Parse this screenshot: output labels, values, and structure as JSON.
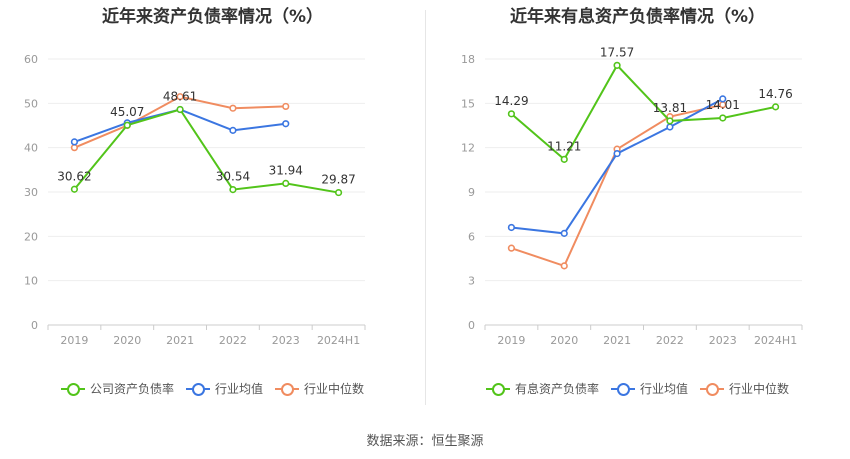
{
  "chart_data": [
    {
      "type": "line",
      "title": "近年来资产负债率情况（%）",
      "categories": [
        "2019",
        "2020",
        "2021",
        "2022",
        "2023",
        "2024H1"
      ],
      "ylim": [
        0,
        60
      ],
      "yticks": [
        0,
        10,
        20,
        30,
        40,
        50,
        60
      ],
      "series": [
        {
          "name": "公司资产负债率",
          "color": "#52c41a",
          "values": [
            30.62,
            45.07,
            48.61,
            30.54,
            31.94,
            29.87
          ],
          "labels": [
            "30.62",
            "45.07",
            "48.61",
            "30.54",
            "31.94",
            "29.87"
          ]
        },
        {
          "name": "行业均值",
          "color": "#3b76e1",
          "values": [
            41.3,
            45.6,
            48.6,
            43.9,
            45.4,
            null
          ]
        },
        {
          "name": "行业中位数",
          "color": "#f08c60",
          "values": [
            40.0,
            45.0,
            51.5,
            48.9,
            49.3,
            null
          ]
        }
      ]
    },
    {
      "type": "line",
      "title": "近年来有息资产负债率情况（%）",
      "categories": [
        "2019",
        "2020",
        "2021",
        "2022",
        "2023",
        "2024H1"
      ],
      "ylim": [
        0,
        18
      ],
      "yticks": [
        0,
        3,
        6,
        9,
        12,
        15,
        18
      ],
      "series": [
        {
          "name": "有息资产负债率",
          "color": "#52c41a",
          "values": [
            14.29,
            11.21,
            17.57,
            13.81,
            14.01,
            14.76
          ],
          "labels": [
            "14.29",
            "11.21",
            "17.57",
            "13.81",
            "14.01",
            "14.76"
          ]
        },
        {
          "name": "行业均值",
          "color": "#3b76e1",
          "values": [
            6.6,
            6.2,
            11.6,
            13.4,
            15.3,
            null
          ]
        },
        {
          "name": "行业中位数",
          "color": "#f08c60",
          "values": [
            5.2,
            4.0,
            11.9,
            14.1,
            14.9,
            null
          ]
        }
      ]
    }
  ],
  "source_text": "数据来源：恒生聚源"
}
